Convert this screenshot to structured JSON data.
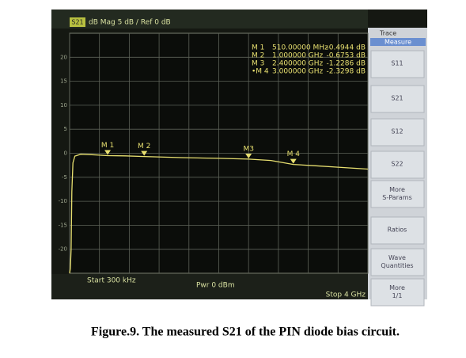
{
  "header": {
    "trace_label": "S21",
    "format": "dB Mag 5 dB / Ref 0 dB"
  },
  "chart_data": {
    "type": "line",
    "x": [
      0.0003,
      0.01,
      0.02,
      0.03,
      0.045,
      0.07,
      0.15,
      0.3,
      0.51,
      0.75,
      1,
      1.5,
      2,
      2.4,
      2.7,
      3,
      3.3,
      3.6,
      4
    ],
    "series": [
      {
        "name": "S21",
        "color": "#e8e070",
        "values": [
          -25,
          -24,
          -20,
          -8,
          -2,
          -0.6,
          -0.2,
          -0.3,
          -0.4944,
          -0.55,
          -0.6753,
          -0.9,
          -1.05,
          -1.2286,
          -1.5,
          -2.3298,
          -2.6,
          -2.9,
          -3.3
        ]
      }
    ],
    "xlim": [
      0.0003,
      4
    ],
    "ylim": [
      -25,
      25
    ],
    "yticks": [
      20,
      15,
      10,
      5,
      0,
      -5,
      -10,
      -15,
      -20
    ],
    "xgrid": [
      0.0003,
      0.4,
      0.8,
      1.2,
      1.6,
      2.0,
      2.4,
      2.8,
      3.2,
      3.6,
      4
    ],
    "grid": true,
    "markers": {
      "names": [
        "M 1",
        "M 2",
        "M 3",
        "•M 4"
      ],
      "short": [
        "M 1",
        "M 2",
        "M3",
        "M 4"
      ],
      "x": [
        0.51,
        1,
        2.4,
        3
      ],
      "x_labels": [
        "510.00000 MHz",
        "1.000000 GHz",
        "2.400000 GHz",
        "3.000000 GHz"
      ],
      "values": [
        -0.4944,
        -0.6753,
        -1.2286,
        -2.3298
      ],
      "value_labels": [
        "-0.4944 dB",
        "-0.6753 dB",
        "-1.2286 dB",
        "-2.3298 dB"
      ]
    }
  },
  "footer": {
    "start": "Start 300 kHz",
    "power": "Pwr 0 dBm",
    "stop": "Stop 4 GHz"
  },
  "softkeys": {
    "title": "Trace",
    "menu": "Measure",
    "keys": [
      "S11",
      "S21",
      "S12",
      "S22",
      "More S-Params",
      "Ratios",
      "Wave Quantities",
      "More 1/1"
    ]
  },
  "caption": "Figure.9. The measured S21 of the PIN diode bias circuit."
}
